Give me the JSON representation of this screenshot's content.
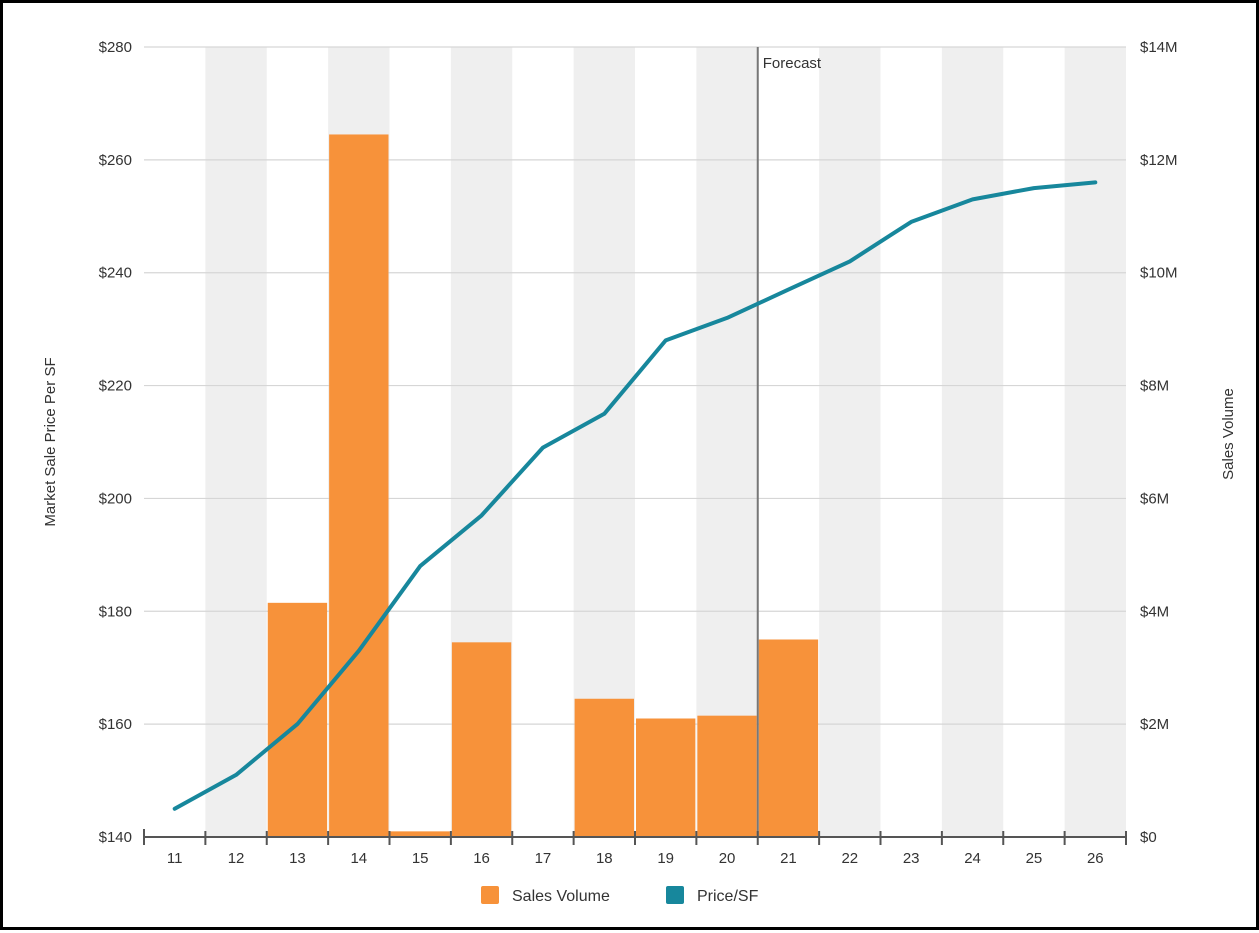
{
  "chart_data": {
    "type": "bar+line",
    "categories": [
      "11",
      "12",
      "13",
      "14",
      "15",
      "16",
      "17",
      "18",
      "19",
      "20",
      "21",
      "22",
      "23",
      "24",
      "25",
      "26"
    ],
    "series": [
      {
        "name": "Sales Volume",
        "type": "bar",
        "axis": "right",
        "color": "#f7923a",
        "values": [
          0,
          0,
          4.15,
          12.45,
          0.1,
          3.45,
          0,
          2.45,
          2.1,
          2.15,
          3.5,
          0,
          0,
          0,
          0,
          0
        ]
      },
      {
        "name": "Price/SF",
        "type": "line",
        "axis": "left",
        "color": "#17879c",
        "values": [
          145,
          151,
          160,
          173,
          188,
          197,
          209,
          215,
          228,
          232,
          237,
          242,
          249,
          253,
          255,
          256
        ]
      }
    ],
    "ylabel": "Market Sale Price Per SF",
    "ylabel_right": "Sales Volume",
    "ylim": [
      140,
      280
    ],
    "ylim_right": [
      0,
      14
    ],
    "yticks": [
      "$140",
      "$160",
      "$180",
      "$200",
      "$220",
      "$240",
      "$260",
      "$280"
    ],
    "yticks_right": [
      "$0",
      "$2M",
      "$4M",
      "$6M",
      "$8M",
      "$10M",
      "$12M",
      "$14M"
    ],
    "forecast_label": "Forecast",
    "forecast_start": "21",
    "grid": true,
    "alternating_column_bands": true,
    "legend_position": "bottom-center"
  }
}
